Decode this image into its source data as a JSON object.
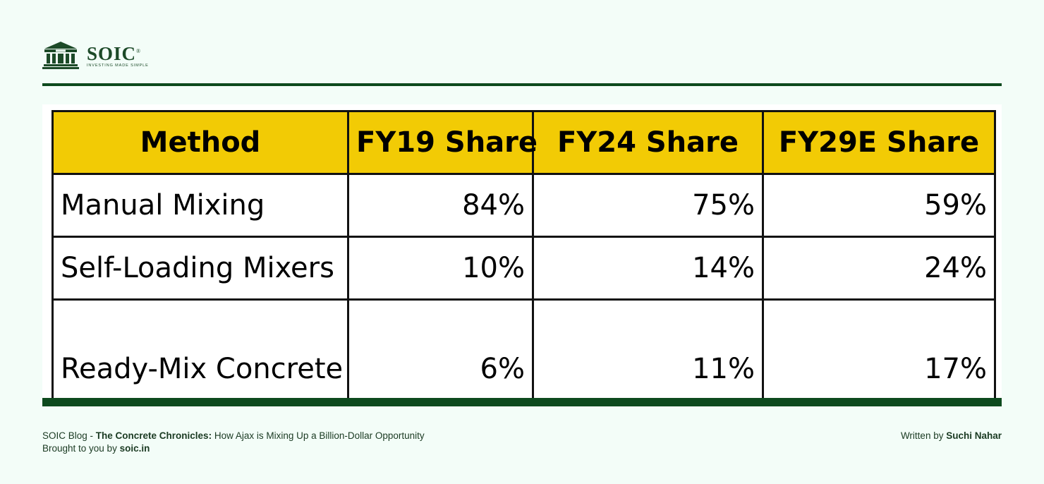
{
  "brand": {
    "name": "SOIC",
    "tagline": "INVESTING MADE SIMPLE",
    "registered": "®",
    "logo_icon": "temple-columns-icon",
    "color": "#1c4a28"
  },
  "chart_data": {
    "type": "table",
    "columns": [
      "Method",
      "FY19 Share",
      "FY24 Share",
      "FY29E Share"
    ],
    "rows": [
      {
        "method": "Manual Mixing",
        "values": [
          "84%",
          "75%",
          "59%"
        ]
      },
      {
        "method": "Self-Loading Mixers",
        "values": [
          "10%",
          "14%",
          "24%"
        ]
      },
      {
        "method": "Ready-Mix Concrete",
        "values": [
          "6%",
          "11%",
          "17%"
        ]
      }
    ],
    "header_color": "#f2cb05"
  },
  "footer": {
    "blog_prefix": "SOIC Blog - ",
    "blog_title": "The Concrete Chronicles:",
    "blog_subtitle": " How Ajax is Mixing Up a Billion-Dollar Opportunity",
    "brought_prefix": "Brought to you by ",
    "site": "soic.in",
    "written_prefix": "Written by ",
    "author": "Suchi Nahar"
  },
  "colors": {
    "background": "#f3fdf8",
    "rule": "#0d4a1e"
  }
}
